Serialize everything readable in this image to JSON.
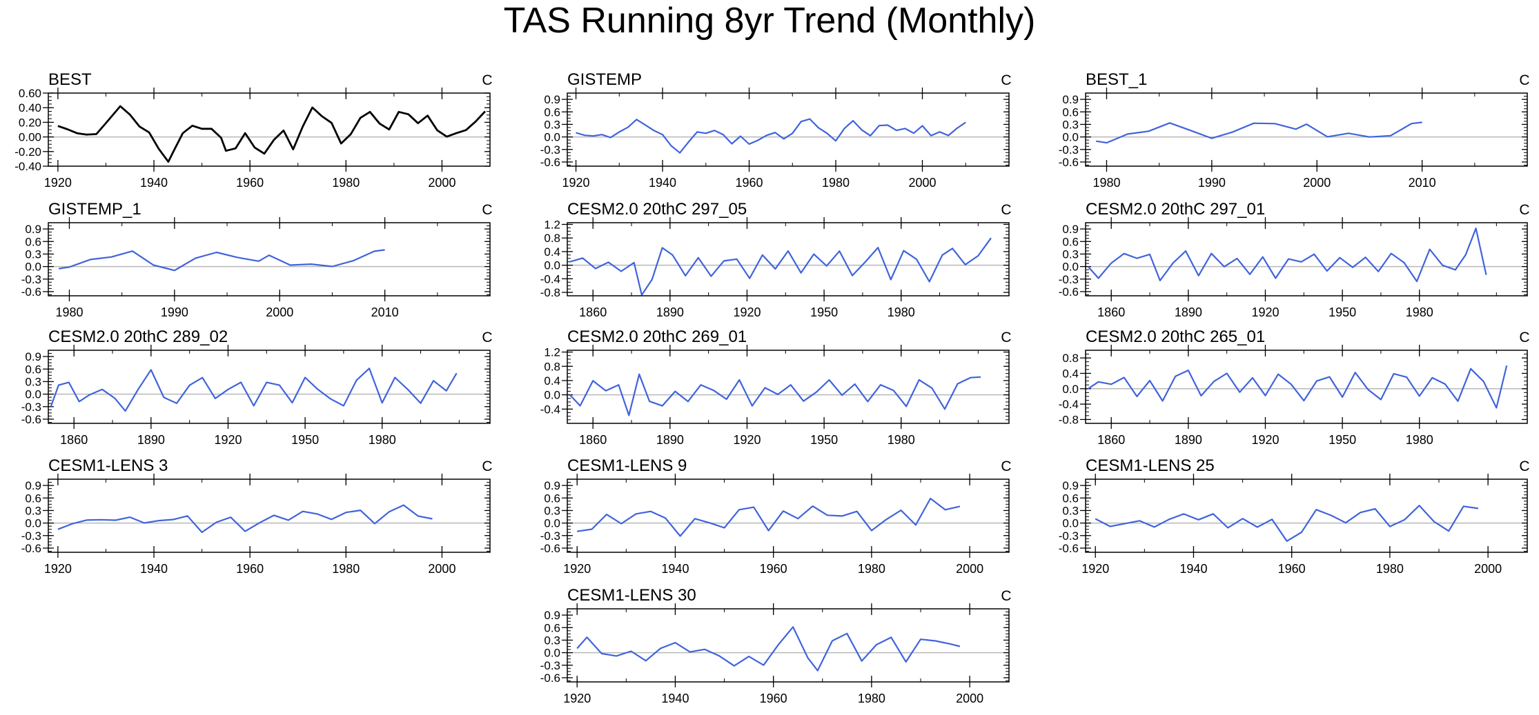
{
  "title": "TAS Running 8yr Trend (Monthly)",
  "colors": {
    "black_line": "#000000",
    "blue_line": "#3f63dc",
    "zero_line": "#b8b8b8",
    "frame": "#000000"
  },
  "chart_data": [
    {
      "type": "line",
      "title": "BEST",
      "units": "C",
      "color": "black",
      "xlim": [
        1918,
        2010
      ],
      "ylim": [
        -0.4,
        0.6
      ],
      "xticks": [
        1920,
        1940,
        1960,
        1980,
        2000
      ],
      "yticks": [
        -0.4,
        -0.2,
        0.0,
        0.2,
        0.4,
        0.6
      ],
      "ytick_labels": [
        "-0.40",
        "-0.20",
        "0.00",
        "0.20",
        "0.40",
        "0.60"
      ],
      "x": [
        1920,
        1922,
        1924,
        1926,
        1928,
        1930,
        1932,
        1933,
        1935,
        1937,
        1939,
        1941,
        1943,
        1944,
        1946,
        1948,
        1950,
        1952,
        1954,
        1955,
        1957,
        1959,
        1961,
        1963,
        1965,
        1967,
        1969,
        1971,
        1973,
        1975,
        1977,
        1979,
        1981,
        1983,
        1985,
        1987,
        1989,
        1991,
        1993,
        1995,
        1997,
        1999,
        2001,
        2003,
        2005,
        2007,
        2009
      ],
      "y": [
        0.15,
        0.1,
        0.06,
        0.02,
        0.05,
        0.18,
        0.35,
        0.42,
        0.3,
        0.15,
        0.05,
        -0.15,
        -0.35,
        -0.2,
        0.05,
        0.15,
        0.12,
        0.1,
        0.0,
        -0.2,
        -0.15,
        0.05,
        -0.15,
        -0.22,
        -0.05,
        0.1,
        -0.18,
        0.15,
        0.4,
        0.28,
        0.2,
        -0.1,
        0.05,
        0.25,
        0.35,
        0.18,
        0.1,
        0.35,
        0.3,
        0.2,
        0.28,
        0.1,
        0.0,
        0.05,
        0.1,
        0.2,
        0.35
      ]
    },
    {
      "type": "line",
      "title": "GISTEMP",
      "units": "C",
      "color": "blue",
      "xlim": [
        1918,
        2020
      ],
      "ylim": [
        -0.7,
        1.05
      ],
      "xticks": [
        1920,
        1940,
        1960,
        1980,
        2000
      ],
      "yticks": [
        -0.6,
        -0.3,
        0.0,
        0.3,
        0.6,
        0.9
      ],
      "ytick_labels": [
        "-0.6",
        "-0.3",
        "0.0",
        "0.3",
        "0.6",
        "0.9"
      ],
      "x": [
        1920,
        1922,
        1924,
        1926,
        1928,
        1930,
        1932,
        1934,
        1936,
        1938,
        1940,
        1942,
        1944,
        1946,
        1948,
        1950,
        1952,
        1954,
        1956,
        1958,
        1960,
        1962,
        1964,
        1966,
        1968,
        1970,
        1972,
        1974,
        1976,
        1978,
        1980,
        1982,
        1984,
        1986,
        1988,
        1990,
        1992,
        1994,
        1996,
        1998,
        2000,
        2002,
        2004,
        2006,
        2008,
        2010
      ],
      "y": [
        0.1,
        0.05,
        0.02,
        0.05,
        0.0,
        0.1,
        0.25,
        0.4,
        0.3,
        0.15,
        0.05,
        -0.2,
        -0.4,
        -0.1,
        0.1,
        0.1,
        0.15,
        0.05,
        -0.15,
        0.0,
        -0.15,
        -0.1,
        0.05,
        0.1,
        -0.05,
        0.1,
        0.35,
        0.45,
        0.2,
        0.1,
        -0.1,
        0.2,
        0.4,
        0.15,
        0.05,
        0.25,
        0.3,
        0.15,
        0.2,
        0.1,
        0.25,
        0.05,
        0.1,
        0.05,
        0.2,
        0.35
      ]
    },
    {
      "type": "line",
      "title": "BEST_1",
      "units": "C",
      "color": "blue",
      "xlim": [
        1978,
        2020
      ],
      "ylim": [
        -0.7,
        1.05
      ],
      "xticks": [
        1980,
        1990,
        2000,
        2010
      ],
      "yticks": [
        -0.6,
        -0.3,
        0.0,
        0.3,
        0.6,
        0.9
      ],
      "ytick_labels": [
        "-0.6",
        "-0.3",
        "0.0",
        "0.3",
        "0.6",
        "0.9"
      ],
      "x": [
        1979,
        1980,
        1982,
        1984,
        1986,
        1988,
        1990,
        1992,
        1994,
        1996,
        1998,
        1999,
        2001,
        2003,
        2005,
        2007,
        2009,
        2010
      ],
      "y": [
        -0.1,
        -0.12,
        0.05,
        0.15,
        0.33,
        0.15,
        -0.02,
        0.1,
        0.35,
        0.3,
        0.2,
        0.3,
        0.0,
        0.1,
        -0.02,
        0.05,
        0.3,
        0.35
      ]
    },
    {
      "type": "line",
      "title": "GISTEMP_1",
      "units": "C",
      "color": "blue",
      "xlim": [
        1978,
        2020
      ],
      "ylim": [
        -0.7,
        1.05
      ],
      "xticks": [
        1980,
        1990,
        2000,
        2010
      ],
      "yticks": [
        -0.6,
        -0.3,
        0.0,
        0.3,
        0.6,
        0.9
      ],
      "ytick_labels": [
        "-0.6",
        "-0.3",
        "0.0",
        "0.3",
        "0.6",
        "0.9"
      ],
      "x": [
        1979,
        1980,
        1982,
        1984,
        1986,
        1988,
        1990,
        1992,
        1994,
        1996,
        1998,
        1999,
        2001,
        2003,
        2005,
        2007,
        2009,
        2010
      ],
      "y": [
        -0.05,
        0.0,
        0.15,
        0.25,
        0.35,
        0.05,
        -0.1,
        0.2,
        0.35,
        0.2,
        0.15,
        0.25,
        0.05,
        0.05,
        0.0,
        0.15,
        0.35,
        0.4
      ]
    },
    {
      "type": "line",
      "title": "CESM2.0 20thC 297_05",
      "units": "C",
      "color": "blue",
      "xlim": [
        1850,
        2022
      ],
      "ylim": [
        -0.9,
        1.25
      ],
      "xticks": [
        1860,
        1890,
        1920,
        1950,
        1980
      ],
      "yticks": [
        -0.8,
        -0.4,
        0.0,
        0.4,
        0.8,
        1.2
      ],
      "ytick_labels": [
        "-0.8",
        "-0.4",
        "0.0",
        "0.4",
        "0.8",
        "1.2"
      ],
      "x": [
        1851,
        1856,
        1861,
        1866,
        1871,
        1876,
        1879,
        1883,
        1887,
        1891,
        1896,
        1901,
        1906,
        1911,
        1916,
        1921,
        1926,
        1931,
        1936,
        1941,
        1946,
        1951,
        1956,
        1961,
        1966,
        1971,
        1976,
        1981,
        1986,
        1991,
        1996,
        2000,
        2005,
        2010,
        2015
      ],
      "y": [
        0.1,
        0.2,
        -0.1,
        0.1,
        -0.2,
        0.1,
        -0.9,
        -0.4,
        0.5,
        0.3,
        -0.3,
        0.2,
        -0.3,
        0.1,
        0.2,
        -0.4,
        0.3,
        -0.1,
        0.4,
        -0.2,
        0.3,
        0.0,
        0.4,
        -0.3,
        0.1,
        0.5,
        -0.4,
        0.4,
        0.2,
        -0.5,
        0.3,
        0.5,
        0.0,
        0.3,
        0.8
      ]
    },
    {
      "type": "line",
      "title": "CESM2.0 20thC 297_01",
      "units": "C",
      "color": "blue",
      "xlim": [
        1850,
        2022
      ],
      "ylim": [
        -0.7,
        1.05
      ],
      "xticks": [
        1860,
        1890,
        1920,
        1950,
        1980
      ],
      "yticks": [
        -0.6,
        -0.3,
        0.0,
        0.3,
        0.6,
        0.9
      ],
      "ytick_labels": [
        "-0.6",
        "-0.3",
        "0.0",
        "0.3",
        "0.6",
        "0.9"
      ],
      "x": [
        1851,
        1855,
        1860,
        1865,
        1870,
        1875,
        1879,
        1884,
        1889,
        1894,
        1899,
        1904,
        1909,
        1914,
        1919,
        1924,
        1929,
        1934,
        1939,
        1944,
        1949,
        1954,
        1959,
        1964,
        1969,
        1974,
        1979,
        1984,
        1989,
        1994,
        1998,
        2002,
        2006
      ],
      "y": [
        0.0,
        -0.3,
        0.1,
        0.3,
        0.2,
        0.3,
        -0.35,
        0.1,
        0.35,
        -0.2,
        0.3,
        0.0,
        0.2,
        -0.2,
        0.25,
        -0.3,
        0.2,
        0.1,
        0.3,
        -0.1,
        0.2,
        0.0,
        0.2,
        -0.1,
        0.3,
        0.1,
        -0.35,
        0.4,
        0.05,
        -0.1,
        0.3,
        0.9,
        -0.2
      ]
    },
    {
      "type": "line",
      "title": "CESM2.0 20thC 289_02",
      "units": "C",
      "color": "blue",
      "xlim": [
        1850,
        2022
      ],
      "ylim": [
        -0.7,
        1.05
      ],
      "xticks": [
        1860,
        1890,
        1920,
        1950,
        1980
      ],
      "yticks": [
        -0.6,
        -0.3,
        0.0,
        0.3,
        0.6,
        0.9
      ],
      "ytick_labels": [
        "-0.6",
        "-0.3",
        "0.0",
        "0.3",
        "0.6",
        "0.9"
      ],
      "x": [
        1851,
        1854,
        1858,
        1862,
        1866,
        1871,
        1876,
        1880,
        1885,
        1890,
        1895,
        1900,
        1905,
        1910,
        1915,
        1920,
        1925,
        1930,
        1935,
        1940,
        1945,
        1950,
        1955,
        1960,
        1965,
        1970,
        1975,
        1980,
        1985,
        1990,
        1995,
        2000,
        2005,
        2009
      ],
      "y": [
        -0.3,
        0.2,
        0.3,
        -0.2,
        0.0,
        0.1,
        -0.1,
        -0.4,
        0.1,
        0.6,
        -0.1,
        -0.2,
        0.2,
        0.4,
        -0.1,
        0.1,
        0.3,
        -0.3,
        0.3,
        0.2,
        -0.2,
        0.4,
        0.1,
        -0.1,
        -0.3,
        0.35,
        0.6,
        -0.2,
        0.4,
        0.1,
        -0.2,
        0.3,
        0.1,
        0.5
      ]
    },
    {
      "type": "line",
      "title": "CESM2.0 20thC 269_01",
      "units": "C",
      "color": "blue",
      "xlim": [
        1850,
        2022
      ],
      "ylim": [
        -0.8,
        1.25
      ],
      "xticks": [
        1860,
        1890,
        1920,
        1950,
        1980
      ],
      "yticks": [
        -0.4,
        0.0,
        0.4,
        0.8,
        1.2
      ],
      "ytick_labels": [
        "-0.4",
        "0.0",
        "0.4",
        "0.8",
        "1.2"
      ],
      "x": [
        1851,
        1855,
        1860,
        1865,
        1870,
        1874,
        1878,
        1882,
        1887,
        1892,
        1897,
        1902,
        1907,
        1912,
        1917,
        1922,
        1927,
        1932,
        1937,
        1942,
        1947,
        1952,
        1957,
        1962,
        1967,
        1972,
        1977,
        1982,
        1987,
        1992,
        1997,
        2002,
        2007,
        2011
      ],
      "y": [
        0.0,
        -0.3,
        0.4,
        0.1,
        0.3,
        -0.6,
        0.6,
        -0.2,
        -0.3,
        0.1,
        -0.2,
        0.3,
        0.1,
        -0.1,
        0.4,
        -0.3,
        0.2,
        0.0,
        0.3,
        -0.2,
        0.1,
        0.4,
        0.0,
        0.3,
        -0.2,
        0.3,
        0.1,
        -0.3,
        0.4,
        0.2,
        -0.4,
        0.3,
        0.5,
        0.5
      ]
    },
    {
      "type": "line",
      "title": "CESM2.0 20thC 265_01",
      "units": "C",
      "color": "blue",
      "xlim": [
        1850,
        2022
      ],
      "ylim": [
        -0.9,
        1.0
      ],
      "xticks": [
        1860,
        1890,
        1920,
        1950,
        1980
      ],
      "yticks": [
        -0.8,
        -0.4,
        0.0,
        0.4,
        0.8
      ],
      "ytick_labels": [
        "-0.8",
        "-0.4",
        "0.0",
        "0.4",
        "0.8"
      ],
      "x": [
        1851,
        1855,
        1860,
        1865,
        1870,
        1875,
        1880,
        1885,
        1890,
        1895,
        1900,
        1905,
        1910,
        1915,
        1920,
        1925,
        1930,
        1935,
        1940,
        1945,
        1950,
        1955,
        1960,
        1965,
        1970,
        1975,
        1980,
        1985,
        1990,
        1995,
        2000,
        2005,
        2010,
        2014
      ],
      "y": [
        0.0,
        0.2,
        0.1,
        0.3,
        -0.2,
        0.2,
        -0.3,
        0.3,
        0.5,
        -0.2,
        0.2,
        0.4,
        -0.1,
        0.3,
        -0.2,
        0.4,
        0.1,
        -0.3,
        0.2,
        0.3,
        -0.2,
        0.4,
        0.0,
        -0.3,
        0.4,
        0.3,
        -0.2,
        0.3,
        0.1,
        -0.3,
        0.5,
        0.2,
        -0.5,
        0.6
      ]
    },
    {
      "type": "line",
      "title": "CESM1-LENS 3",
      "units": "C",
      "color": "blue",
      "xlim": [
        1918,
        2010
      ],
      "ylim": [
        -0.7,
        1.05
      ],
      "xticks": [
        1920,
        1940,
        1960,
        1980,
        2000
      ],
      "yticks": [
        -0.6,
        -0.3,
        0.0,
        0.3,
        0.6,
        0.9
      ],
      "ytick_labels": [
        "-0.6",
        "-0.3",
        "0.0",
        "0.3",
        "0.6",
        "0.9"
      ],
      "x": [
        1920,
        1923,
        1926,
        1929,
        1932,
        1935,
        1938,
        1941,
        1944,
        1947,
        1950,
        1953,
        1956,
        1959,
        1962,
        1965,
        1968,
        1971,
        1974,
        1977,
        1980,
        1983,
        1986,
        1989,
        1992,
        1995,
        1998
      ],
      "y": [
        -0.15,
        0.0,
        0.05,
        0.1,
        0.05,
        0.15,
        0.0,
        0.05,
        0.1,
        0.15,
        -0.2,
        0.0,
        0.15,
        -0.2,
        0.0,
        0.2,
        0.05,
        0.3,
        0.2,
        0.1,
        0.25,
        0.3,
        0.0,
        0.25,
        0.45,
        0.15,
        0.1
      ]
    },
    {
      "type": "line",
      "title": "CESM1-LENS 9",
      "units": "C",
      "color": "blue",
      "xlim": [
        1918,
        2008
      ],
      "ylim": [
        -0.7,
        1.05
      ],
      "xticks": [
        1920,
        1940,
        1960,
        1980,
        2000
      ],
      "yticks": [
        -0.6,
        -0.3,
        0.0,
        0.3,
        0.6,
        0.9
      ],
      "ytick_labels": [
        "-0.6",
        "-0.3",
        "0.0",
        "0.3",
        "0.6",
        "0.9"
      ],
      "x": [
        1920,
        1923,
        1926,
        1929,
        1932,
        1935,
        1938,
        1941,
        1944,
        1947,
        1950,
        1953,
        1956,
        1959,
        1962,
        1965,
        1968,
        1971,
        1974,
        1977,
        1980,
        1983,
        1986,
        1989,
        1992,
        1995,
        1998
      ],
      "y": [
        -0.2,
        -0.15,
        0.2,
        0.0,
        0.2,
        0.3,
        0.1,
        -0.3,
        0.1,
        0.0,
        -0.1,
        0.3,
        0.4,
        -0.2,
        0.3,
        0.1,
        0.4,
        0.2,
        0.15,
        0.3,
        -0.2,
        0.1,
        0.3,
        -0.05,
        0.6,
        0.3,
        0.4
      ]
    },
    {
      "type": "line",
      "title": "CESM1-LENS 25",
      "units": "C",
      "color": "blue",
      "xlim": [
        1918,
        2008
      ],
      "ylim": [
        -0.7,
        1.05
      ],
      "xticks": [
        1920,
        1940,
        1960,
        1980,
        2000
      ],
      "yticks": [
        -0.6,
        -0.3,
        0.0,
        0.3,
        0.6,
        0.9
      ],
      "ytick_labels": [
        "-0.6",
        "-0.3",
        "0.0",
        "0.3",
        "0.6",
        "0.9"
      ],
      "x": [
        1920,
        1923,
        1926,
        1929,
        1932,
        1935,
        1938,
        1941,
        1944,
        1947,
        1950,
        1953,
        1956,
        1959,
        1962,
        1965,
        1968,
        1971,
        1974,
        1977,
        1980,
        1983,
        1986,
        1989,
        1992,
        1995,
        1998
      ],
      "y": [
        0.1,
        -0.1,
        0.0,
        0.05,
        -0.1,
        0.1,
        0.2,
        0.1,
        0.2,
        -0.1,
        0.1,
        -0.1,
        0.1,
        -0.45,
        -0.2,
        0.3,
        0.2,
        0.0,
        0.25,
        0.35,
        -0.1,
        0.1,
        0.4,
        0.05,
        -0.2,
        0.4,
        0.35
      ]
    },
    {
      "type": "line",
      "title": "CESM1-LENS 30",
      "units": "C",
      "color": "blue",
      "xlim": [
        1918,
        2008
      ],
      "ylim": [
        -0.7,
        1.05
      ],
      "xticks": [
        1920,
        1940,
        1960,
        1980,
        2000
      ],
      "yticks": [
        -0.6,
        -0.3,
        0.0,
        0.3,
        0.6,
        0.9
      ],
      "ytick_labels": [
        "-0.6",
        "-0.3",
        "0.0",
        "0.3",
        "0.6",
        "0.9"
      ],
      "x": [
        1920,
        1922,
        1925,
        1928,
        1931,
        1934,
        1937,
        1940,
        1943,
        1946,
        1949,
        1952,
        1955,
        1958,
        1961,
        1964,
        1967,
        1969,
        1972,
        1975,
        1978,
        1981,
        1984,
        1987,
        1990,
        1993,
        1996,
        1998
      ],
      "y": [
        0.1,
        0.35,
        0.0,
        -0.1,
        0.05,
        -0.2,
        0.1,
        0.25,
        0.0,
        0.1,
        -0.1,
        -0.3,
        -0.1,
        -0.3,
        0.2,
        0.6,
        -0.1,
        -0.45,
        0.3,
        0.45,
        -0.2,
        0.2,
        0.35,
        -0.2,
        0.3,
        0.3,
        0.2,
        0.15
      ]
    }
  ]
}
